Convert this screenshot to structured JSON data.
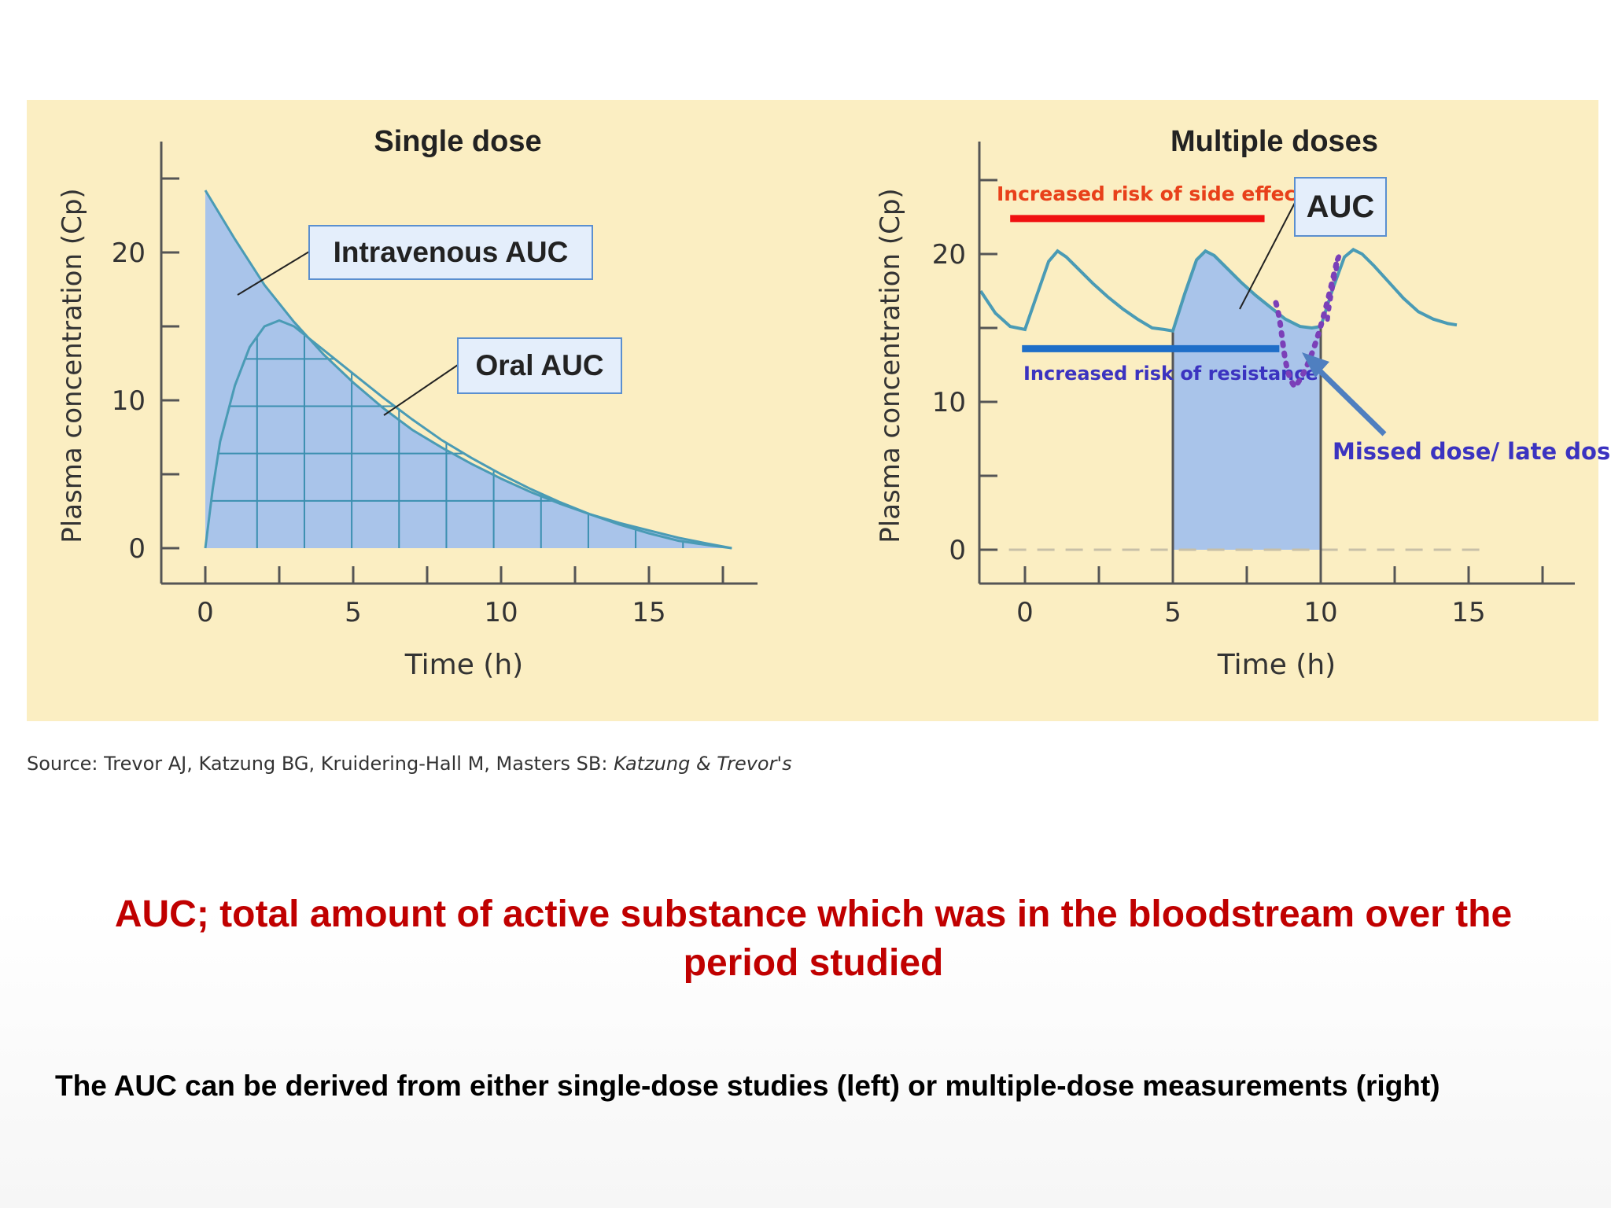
{
  "chart_data": [
    {
      "type": "area",
      "title": "Single dose",
      "xlabel": "Time (h)",
      "ylabel": "Plasma concentration (Cp)",
      "xlim": [
        0,
        18
      ],
      "ylim": [
        0,
        25
      ],
      "x_ticks": [
        "0",
        "5",
        "10",
        "15"
      ],
      "y_ticks": [
        "0",
        "10",
        "20"
      ],
      "annotations": [
        "Intravenous AUC",
        "Oral AUC"
      ],
      "series": [
        {
          "name": "Intravenous AUC",
          "x": [
            0,
            1,
            2,
            3,
            4,
            5,
            6,
            7,
            8,
            9,
            10,
            11,
            12,
            13,
            14,
            15,
            16,
            17,
            17.8
          ],
          "y": [
            24.2,
            20.9,
            17.8,
            15.3,
            13.1,
            11.2,
            9.5,
            8.0,
            6.8,
            5.7,
            4.7,
            3.8,
            3.0,
            2.3,
            1.7,
            1.2,
            0.7,
            0.3,
            0
          ]
        },
        {
          "name": "Oral AUC",
          "x": [
            0,
            0.25,
            0.5,
            1,
            1.5,
            2,
            2.5,
            3,
            4,
            5,
            6,
            7,
            8,
            9,
            10,
            11,
            12,
            13,
            14,
            15,
            16,
            17,
            17.8
          ],
          "y": [
            0,
            4.0,
            7.2,
            11.0,
            13.6,
            15.0,
            15.4,
            15.0,
            13.4,
            11.8,
            10.2,
            8.7,
            7.3,
            6.1,
            5.0,
            4.0,
            3.1,
            2.3,
            1.6,
            1.0,
            0.5,
            0.2,
            0
          ]
        }
      ]
    },
    {
      "type": "line",
      "title": "Multiple doses",
      "xlabel": "Time (h)",
      "ylabel": "Plasma concentration (Cp)",
      "xlim": [
        -1.5,
        18.5
      ],
      "ylim": [
        0,
        25
      ],
      "x_ticks": [
        "0",
        "5",
        "10",
        "15"
      ],
      "y_ticks": [
        "0",
        "10",
        "20"
      ],
      "shaded_auc_interval": [
        5,
        10
      ],
      "side_effect_level": 22.4,
      "resistance_level": 13.6,
      "annotations": [
        "AUC",
        "Increased risk of side effects",
        "Increased risk of resistance",
        "Missed dose/ late dose"
      ],
      "series": [
        {
          "x": [
            -1.5,
            -1.0,
            -0.5,
            0,
            0.4,
            0.8,
            1.1,
            1.4,
            1.8,
            2.3,
            2.8,
            3.3,
            3.8,
            4.3,
            4.7,
            5,
            5.4,
            5.8,
            6.1,
            6.4,
            6.8,
            7.3,
            7.8,
            8.3,
            8.8,
            9.3,
            9.7,
            10,
            10.4,
            10.8,
            11.1,
            11.4,
            11.8,
            12.3,
            12.8,
            13.3,
            13.8,
            14.3,
            14.6
          ],
          "y": [
            17.5,
            16.0,
            15.1,
            14.9,
            17.2,
            19.5,
            20.2,
            19.8,
            19.0,
            18.0,
            17.1,
            16.3,
            15.6,
            15.0,
            14.9,
            14.8,
            17.3,
            19.6,
            20.2,
            19.9,
            19.1,
            18.1,
            17.2,
            16.4,
            15.6,
            15.1,
            15.0,
            15.1,
            17.6,
            19.8,
            20.3,
            20.0,
            19.2,
            18.1,
            17.0,
            16.1,
            15.6,
            15.3,
            15.2
          ]
        }
      ]
    }
  ],
  "source": {
    "prefix": "Source: Trevor AJ, Katzung BG, Kruidering-Hall M, Masters SB: ",
    "italic": "Katzung & Trevor's"
  },
  "definition_line1": "AUC;  total amount of active substance which was in the bloodstream over the",
  "definition_line2": "period studied",
  "caption": "The AUC can be derived from either single-dose studies (left) or multiple-dose measurements (right)",
  "colors": {
    "panel_bg": "#fbeec2",
    "curve": "#4a9bb5",
    "fill": "#a9c4ea",
    "label_box": "#e4eefb",
    "side_effects": "#f01010",
    "resistance": "#1e6ec8",
    "annotation_text": "#3b33c0",
    "dotted": "#7b3fb8",
    "arrow": "#4f7fc0",
    "definition": "#c00000"
  }
}
